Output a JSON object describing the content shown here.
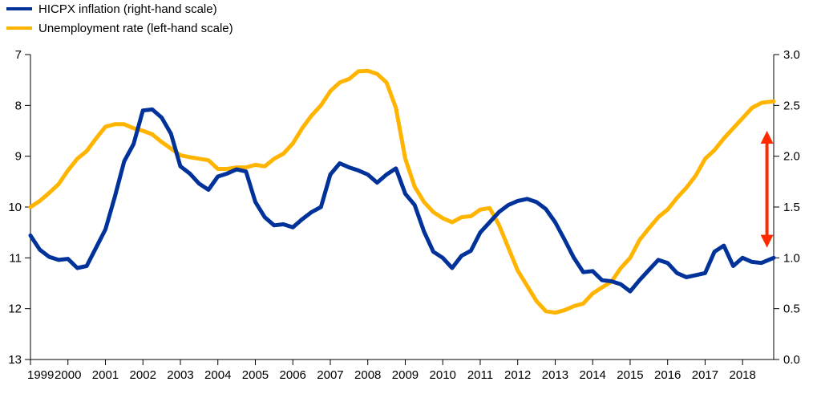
{
  "chart_data": {
    "type": "line",
    "title": "",
    "legend": {
      "placement": "top-left",
      "entries": [
        {
          "label": "HICPX inflation (right-hand scale)",
          "color": "#003299"
        },
        {
          "label": "Unemployment rate (left-hand scale)",
          "color": "#FFB400"
        }
      ]
    },
    "left_axis": {
      "range": [
        7,
        13
      ],
      "inverted": true,
      "ticks": [
        "7",
        "8",
        "9",
        "10",
        "11",
        "12",
        "13"
      ]
    },
    "right_axis": {
      "range": [
        0.0,
        3.0
      ],
      "ticks": [
        "0.0",
        "0.5",
        "1.0",
        "1.5",
        "2.0",
        "2.5",
        "3.0"
      ]
    },
    "x_axis": {
      "range": [
        1999,
        2018.83
      ],
      "ticks": [
        "1999",
        "2000",
        "2001",
        "2002",
        "2003",
        "2004",
        "2005",
        "2006",
        "2007",
        "2008",
        "2009",
        "2010",
        "2011",
        "2012",
        "2013",
        "2014",
        "2015",
        "2016",
        "2017",
        "2018"
      ]
    },
    "grid": false,
    "annotation": {
      "type": "double-arrow",
      "color": "#FF2A00",
      "x": 2018.65,
      "y_from": 2.25,
      "y_to": 1.1,
      "axis": "right"
    },
    "series": [
      {
        "name": "HICPX inflation (right-hand scale)",
        "axis": "right",
        "color": "#003299",
        "x": [
          1999.0,
          1999.25,
          1999.5,
          1999.75,
          2000.0,
          2000.25,
          2000.5,
          2000.75,
          2001.0,
          2001.25,
          2001.5,
          2001.75,
          2002.0,
          2002.25,
          2002.5,
          2002.75,
          2003.0,
          2003.25,
          2003.5,
          2003.75,
          2004.0,
          2004.25,
          2004.5,
          2004.75,
          2005.0,
          2005.25,
          2005.5,
          2005.75,
          2006.0,
          2006.25,
          2006.5,
          2006.75,
          2007.0,
          2007.25,
          2007.5,
          2007.75,
          2008.0,
          2008.25,
          2008.5,
          2008.75,
          2009.0,
          2009.25,
          2009.5,
          2009.75,
          2010.0,
          2010.25,
          2010.5,
          2010.75,
          2011.0,
          2011.25,
          2011.5,
          2011.75,
          2012.0,
          2012.25,
          2012.5,
          2012.75,
          2013.0,
          2013.25,
          2013.5,
          2013.75,
          2014.0,
          2014.25,
          2014.5,
          2014.75,
          2015.0,
          2015.25,
          2015.5,
          2015.75,
          2016.0,
          2016.25,
          2016.5,
          2016.75,
          2017.0,
          2017.25,
          2017.5,
          2017.75,
          2018.0,
          2018.25,
          2018.5,
          2018.83
        ],
        "values": [
          1.22,
          1.08,
          1.01,
          0.98,
          0.99,
          0.9,
          0.92,
          1.1,
          1.28,
          1.6,
          1.95,
          2.12,
          2.45,
          2.46,
          2.38,
          2.22,
          1.9,
          1.83,
          1.73,
          1.67,
          1.8,
          1.83,
          1.87,
          1.85,
          1.55,
          1.4,
          1.32,
          1.33,
          1.3,
          1.38,
          1.45,
          1.5,
          1.82,
          1.93,
          1.89,
          1.86,
          1.82,
          1.74,
          1.82,
          1.88,
          1.63,
          1.52,
          1.26,
          1.06,
          1.0,
          0.9,
          1.02,
          1.07,
          1.25,
          1.35,
          1.45,
          1.52,
          1.56,
          1.58,
          1.55,
          1.48,
          1.35,
          1.18,
          1.0,
          0.86,
          0.87,
          0.78,
          0.77,
          0.74,
          0.67,
          0.78,
          0.88,
          0.98,
          0.95,
          0.85,
          0.81,
          0.83,
          0.85,
          1.06,
          1.12,
          0.92,
          1.0,
          0.96,
          0.95,
          1.0
        ]
      },
      {
        "name": "Unemployment rate (left-hand scale)",
        "axis": "left",
        "color": "#FFB400",
        "x": [
          1999.0,
          1999.25,
          1999.5,
          1999.75,
          2000.0,
          2000.25,
          2000.5,
          2000.75,
          2001.0,
          2001.25,
          2001.5,
          2001.75,
          2002.0,
          2002.25,
          2002.5,
          2002.75,
          2003.0,
          2003.25,
          2003.5,
          2003.75,
          2004.0,
          2004.25,
          2004.5,
          2004.75,
          2005.0,
          2005.25,
          2005.5,
          2005.75,
          2006.0,
          2006.25,
          2006.5,
          2006.75,
          2007.0,
          2007.25,
          2007.5,
          2007.75,
          2008.0,
          2008.25,
          2008.5,
          2008.75,
          2009.0,
          2009.25,
          2009.5,
          2009.75,
          2010.0,
          2010.25,
          2010.5,
          2010.75,
          2011.0,
          2011.25,
          2011.5,
          2011.75,
          2012.0,
          2012.25,
          2012.5,
          2012.75,
          2013.0,
          2013.25,
          2013.5,
          2013.75,
          2014.0,
          2014.25,
          2014.5,
          2014.75,
          2015.0,
          2015.25,
          2015.5,
          2015.75,
          2016.0,
          2016.25,
          2016.5,
          2016.75,
          2017.0,
          2017.25,
          2017.5,
          2017.75,
          2018.0,
          2018.25,
          2018.5,
          2018.83
        ],
        "values": [
          10.0,
          9.88,
          9.72,
          9.55,
          9.28,
          9.05,
          8.9,
          8.65,
          8.42,
          8.37,
          8.37,
          8.45,
          8.5,
          8.57,
          8.72,
          8.85,
          8.98,
          9.02,
          9.05,
          9.08,
          9.25,
          9.25,
          9.22,
          9.22,
          9.17,
          9.2,
          9.05,
          8.95,
          8.75,
          8.45,
          8.2,
          8.0,
          7.72,
          7.55,
          7.48,
          7.33,
          7.32,
          7.38,
          7.55,
          8.05,
          9.05,
          9.6,
          9.9,
          10.1,
          10.22,
          10.3,
          10.2,
          10.18,
          10.05,
          10.02,
          10.35,
          10.8,
          11.25,
          11.55,
          11.85,
          12.05,
          12.08,
          12.03,
          11.95,
          11.9,
          11.7,
          11.58,
          11.47,
          11.2,
          11.0,
          10.65,
          10.42,
          10.2,
          10.05,
          9.82,
          9.62,
          9.38,
          9.05,
          8.88,
          8.65,
          8.45,
          8.25,
          8.05,
          7.95,
          7.92
        ]
      }
    ]
  }
}
